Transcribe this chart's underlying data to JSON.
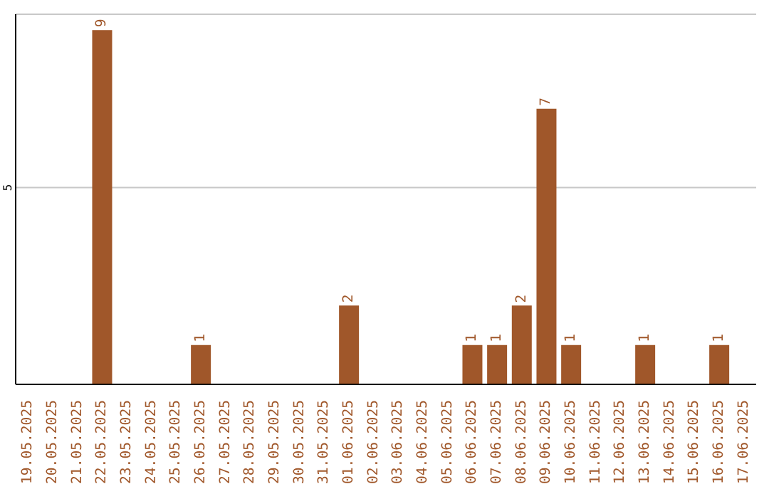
{
  "chart_data": {
    "type": "bar",
    "categories": [
      "19.05.2025",
      "20.05.2025",
      "21.05.2025",
      "22.05.2025",
      "23.05.2025",
      "24.05.2025",
      "25.05.2025",
      "26.05.2025",
      "27.05.2025",
      "28.05.2025",
      "29.05.2025",
      "30.05.2025",
      "31.05.2025",
      "01.06.2025",
      "02.06.2025",
      "03.06.2025",
      "04.06.2025",
      "05.06.2025",
      "06.06.2025",
      "07.06.2025",
      "08.06.2025",
      "09.06.2025",
      "10.06.2025",
      "11.06.2025",
      "12.06.2025",
      "13.06.2025",
      "14.06.2025",
      "15.06.2025",
      "16.06.2025",
      "17.06.2025"
    ],
    "values": [
      0,
      0,
      0,
      9,
      0,
      0,
      0,
      1,
      0,
      0,
      0,
      0,
      0,
      2,
      0,
      0,
      0,
      0,
      1,
      1,
      2,
      7,
      1,
      0,
      0,
      1,
      0,
      0,
      1,
      0
    ],
    "value_labels": [
      null,
      null,
      null,
      "9",
      null,
      null,
      null,
      "1",
      null,
      null,
      null,
      null,
      null,
      "2",
      null,
      null,
      null,
      null,
      "1",
      "1",
      "2",
      "7",
      "1",
      null,
      null,
      "1",
      null,
      null,
      "1",
      null
    ],
    "color": "#a0572a",
    "ylim": [
      0,
      9.4
    ],
    "yticks": [
      5
    ],
    "grid": "y"
  }
}
